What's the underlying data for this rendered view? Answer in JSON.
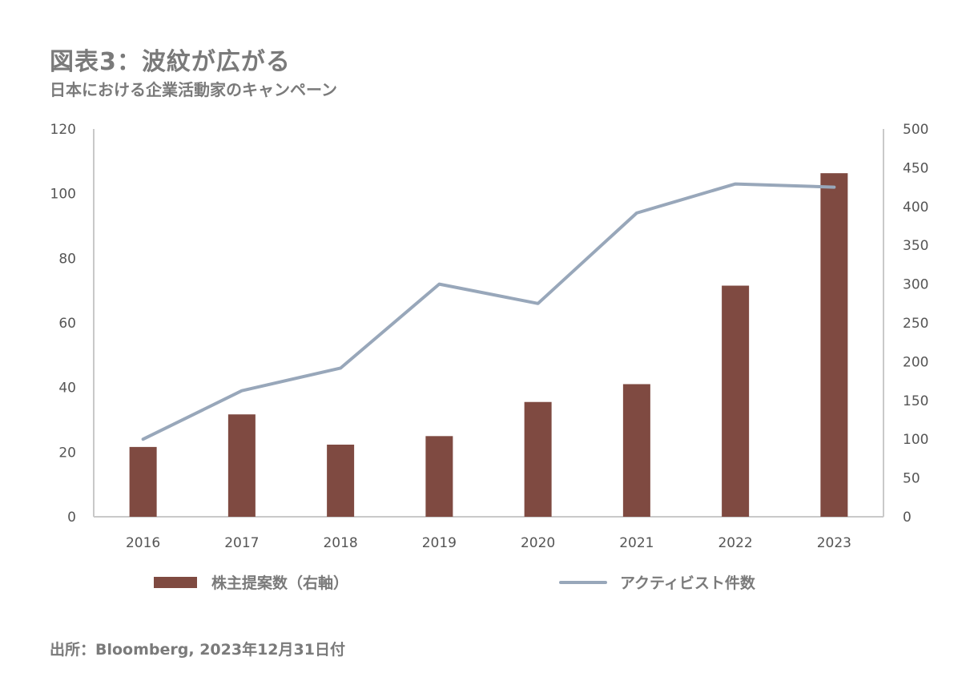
{
  "title": "図表3：波紋が広がる",
  "subtitle": "日本における企業活動家のキャンペーン",
  "source": "出所：Bloomberg, 2023年12月31日付",
  "colors": {
    "bar": "#7f4a41",
    "line": "#98a7ba",
    "axis": "#c9c9c9",
    "text": "#7a7a7a"
  },
  "chart_data": {
    "type": "bar",
    "categories": [
      "2016",
      "2017",
      "2018",
      "2019",
      "2020",
      "2021",
      "2022",
      "2023"
    ],
    "series": [
      {
        "name": "株主提案数（右軸）",
        "type": "bar",
        "axis": "right",
        "values": [
          90,
          132,
          93,
          104,
          148,
          171,
          298,
          443
        ]
      },
      {
        "name": "アクティビスト件数",
        "type": "line",
        "axis": "left",
        "values": [
          24,
          39,
          46,
          72,
          66,
          94,
          103,
          102
        ]
      }
    ],
    "y_left": {
      "lim": [
        0,
        120
      ],
      "ticks": [
        "0",
        "20",
        "40",
        "60",
        "80",
        "100",
        "120"
      ]
    },
    "y_right": {
      "lim": [
        0,
        500
      ],
      "ticks": [
        "0",
        "50",
        "100",
        "150",
        "200",
        "250",
        "300",
        "350",
        "400",
        "450",
        "500"
      ]
    },
    "grid": false,
    "legend": "bottom"
  }
}
